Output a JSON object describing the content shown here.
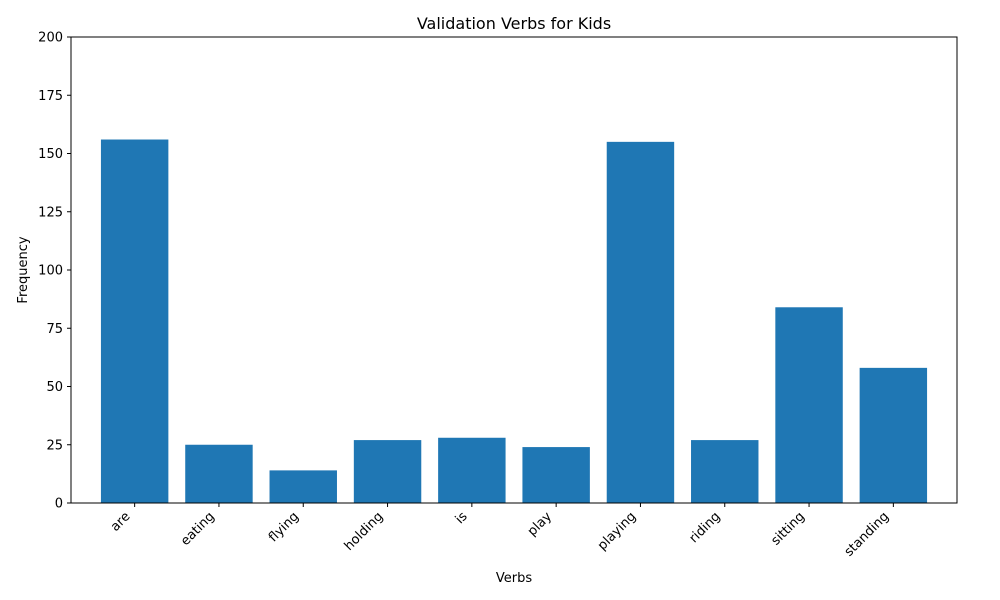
{
  "chart_data": {
    "type": "bar",
    "title": "Validation Verbs for Kids",
    "xlabel": "Verbs",
    "ylabel": "Frequency",
    "categories": [
      "are",
      "eating",
      "flying",
      "holding",
      "is",
      "play",
      "playing",
      "riding",
      "sitting",
      "standing"
    ],
    "values": [
      156,
      25,
      14,
      27,
      28,
      24,
      155,
      27,
      84,
      58
    ],
    "ylim": [
      0,
      200
    ],
    "yticks": [
      0,
      25,
      50,
      75,
      100,
      125,
      150,
      175,
      200
    ],
    "bar_color": "#1f77b4",
    "grid": false,
    "legend": "none"
  }
}
